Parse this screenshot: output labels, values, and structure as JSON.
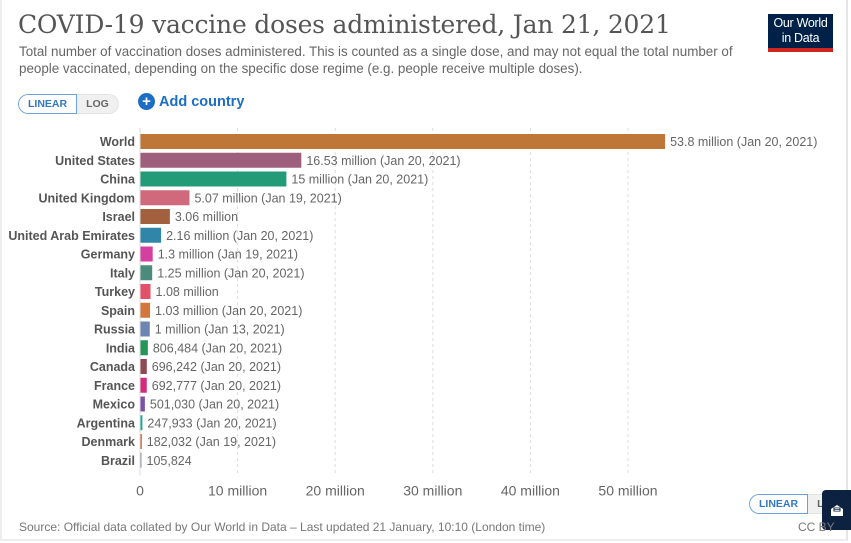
{
  "header": {
    "title": "COVID-19 vaccine doses administered, Jan 21, 2021",
    "subtitle": "Total number of vaccination doses administered. This is counted as a single dose, and may not equal the total number of people vaccinated, depending on the specific dose regime (e.g. people receive multiple doses).",
    "logo_line1": "Our World",
    "logo_line2": "in Data"
  },
  "controls": {
    "scale_linear": "LINEAR",
    "scale_log": "LOG",
    "scale_log_truncated": "LO",
    "add_country": "Add country",
    "selected_scale": "LINEAR"
  },
  "footer": {
    "source": "Source: Official data collated by Our World in Data – Last updated 21 January, 10:10 (London time)",
    "license": "CC BY"
  },
  "chart_data": {
    "type": "bar",
    "orientation": "horizontal",
    "title": "COVID-19 vaccine doses administered, Jan 21, 2021",
    "xlabel": "",
    "ylabel": "",
    "xlim": [
      0,
      53800000
    ],
    "grid": true,
    "x_ticks": [
      0,
      10000000,
      20000000,
      30000000,
      40000000,
      50000000
    ],
    "x_tick_labels": [
      "0",
      "10 million",
      "20 million",
      "30 million",
      "40 million",
      "50 million"
    ],
    "categories": [
      "World",
      "United States",
      "China",
      "United Kingdom",
      "Israel",
      "United Arab Emirates",
      "Germany",
      "Italy",
      "Turkey",
      "Spain",
      "Russia",
      "India",
      "Canada",
      "France",
      "Mexico",
      "Argentina",
      "Denmark",
      "Brazil"
    ],
    "values": [
      53800000,
      16530000,
      15000000,
      5070000,
      3060000,
      2160000,
      1300000,
      1250000,
      1080000,
      1030000,
      1000000,
      806484,
      696242,
      692777,
      501030,
      247933,
      182032,
      105824
    ],
    "labels": [
      "53.8 million (Jan 20, 2021)",
      "16.53 million (Jan 20, 2021)",
      "15 million (Jan 20, 2021)",
      "5.07 million (Jan 19, 2021)",
      "3.06 million",
      "2.16 million (Jan 20, 2021)",
      "1.3 million (Jan 19, 2021)",
      "1.25 million (Jan 20, 2021)",
      "1.08 million",
      "1.03 million (Jan 20, 2021)",
      "1 million (Jan 13, 2021)",
      "806,484 (Jan 20, 2021)",
      "696,242 (Jan 20, 2021)",
      "692,777 (Jan 20, 2021)",
      "501,030 (Jan 20, 2021)",
      "247,933 (Jan 20, 2021)",
      "182,032 (Jan 19, 2021)",
      "105,824"
    ],
    "colors": [
      "#be7737",
      "#9e5f7d",
      "#249b77",
      "#d0697c",
      "#a2603e",
      "#2f86a8",
      "#d53fa0",
      "#4a8b7c",
      "#e1526a",
      "#d4763c",
      "#6c85b2",
      "#27945a",
      "#8e4a54",
      "#d42b7d",
      "#7f51a6",
      "#1fa59c",
      "#d3582b",
      "#8b93a8"
    ]
  }
}
